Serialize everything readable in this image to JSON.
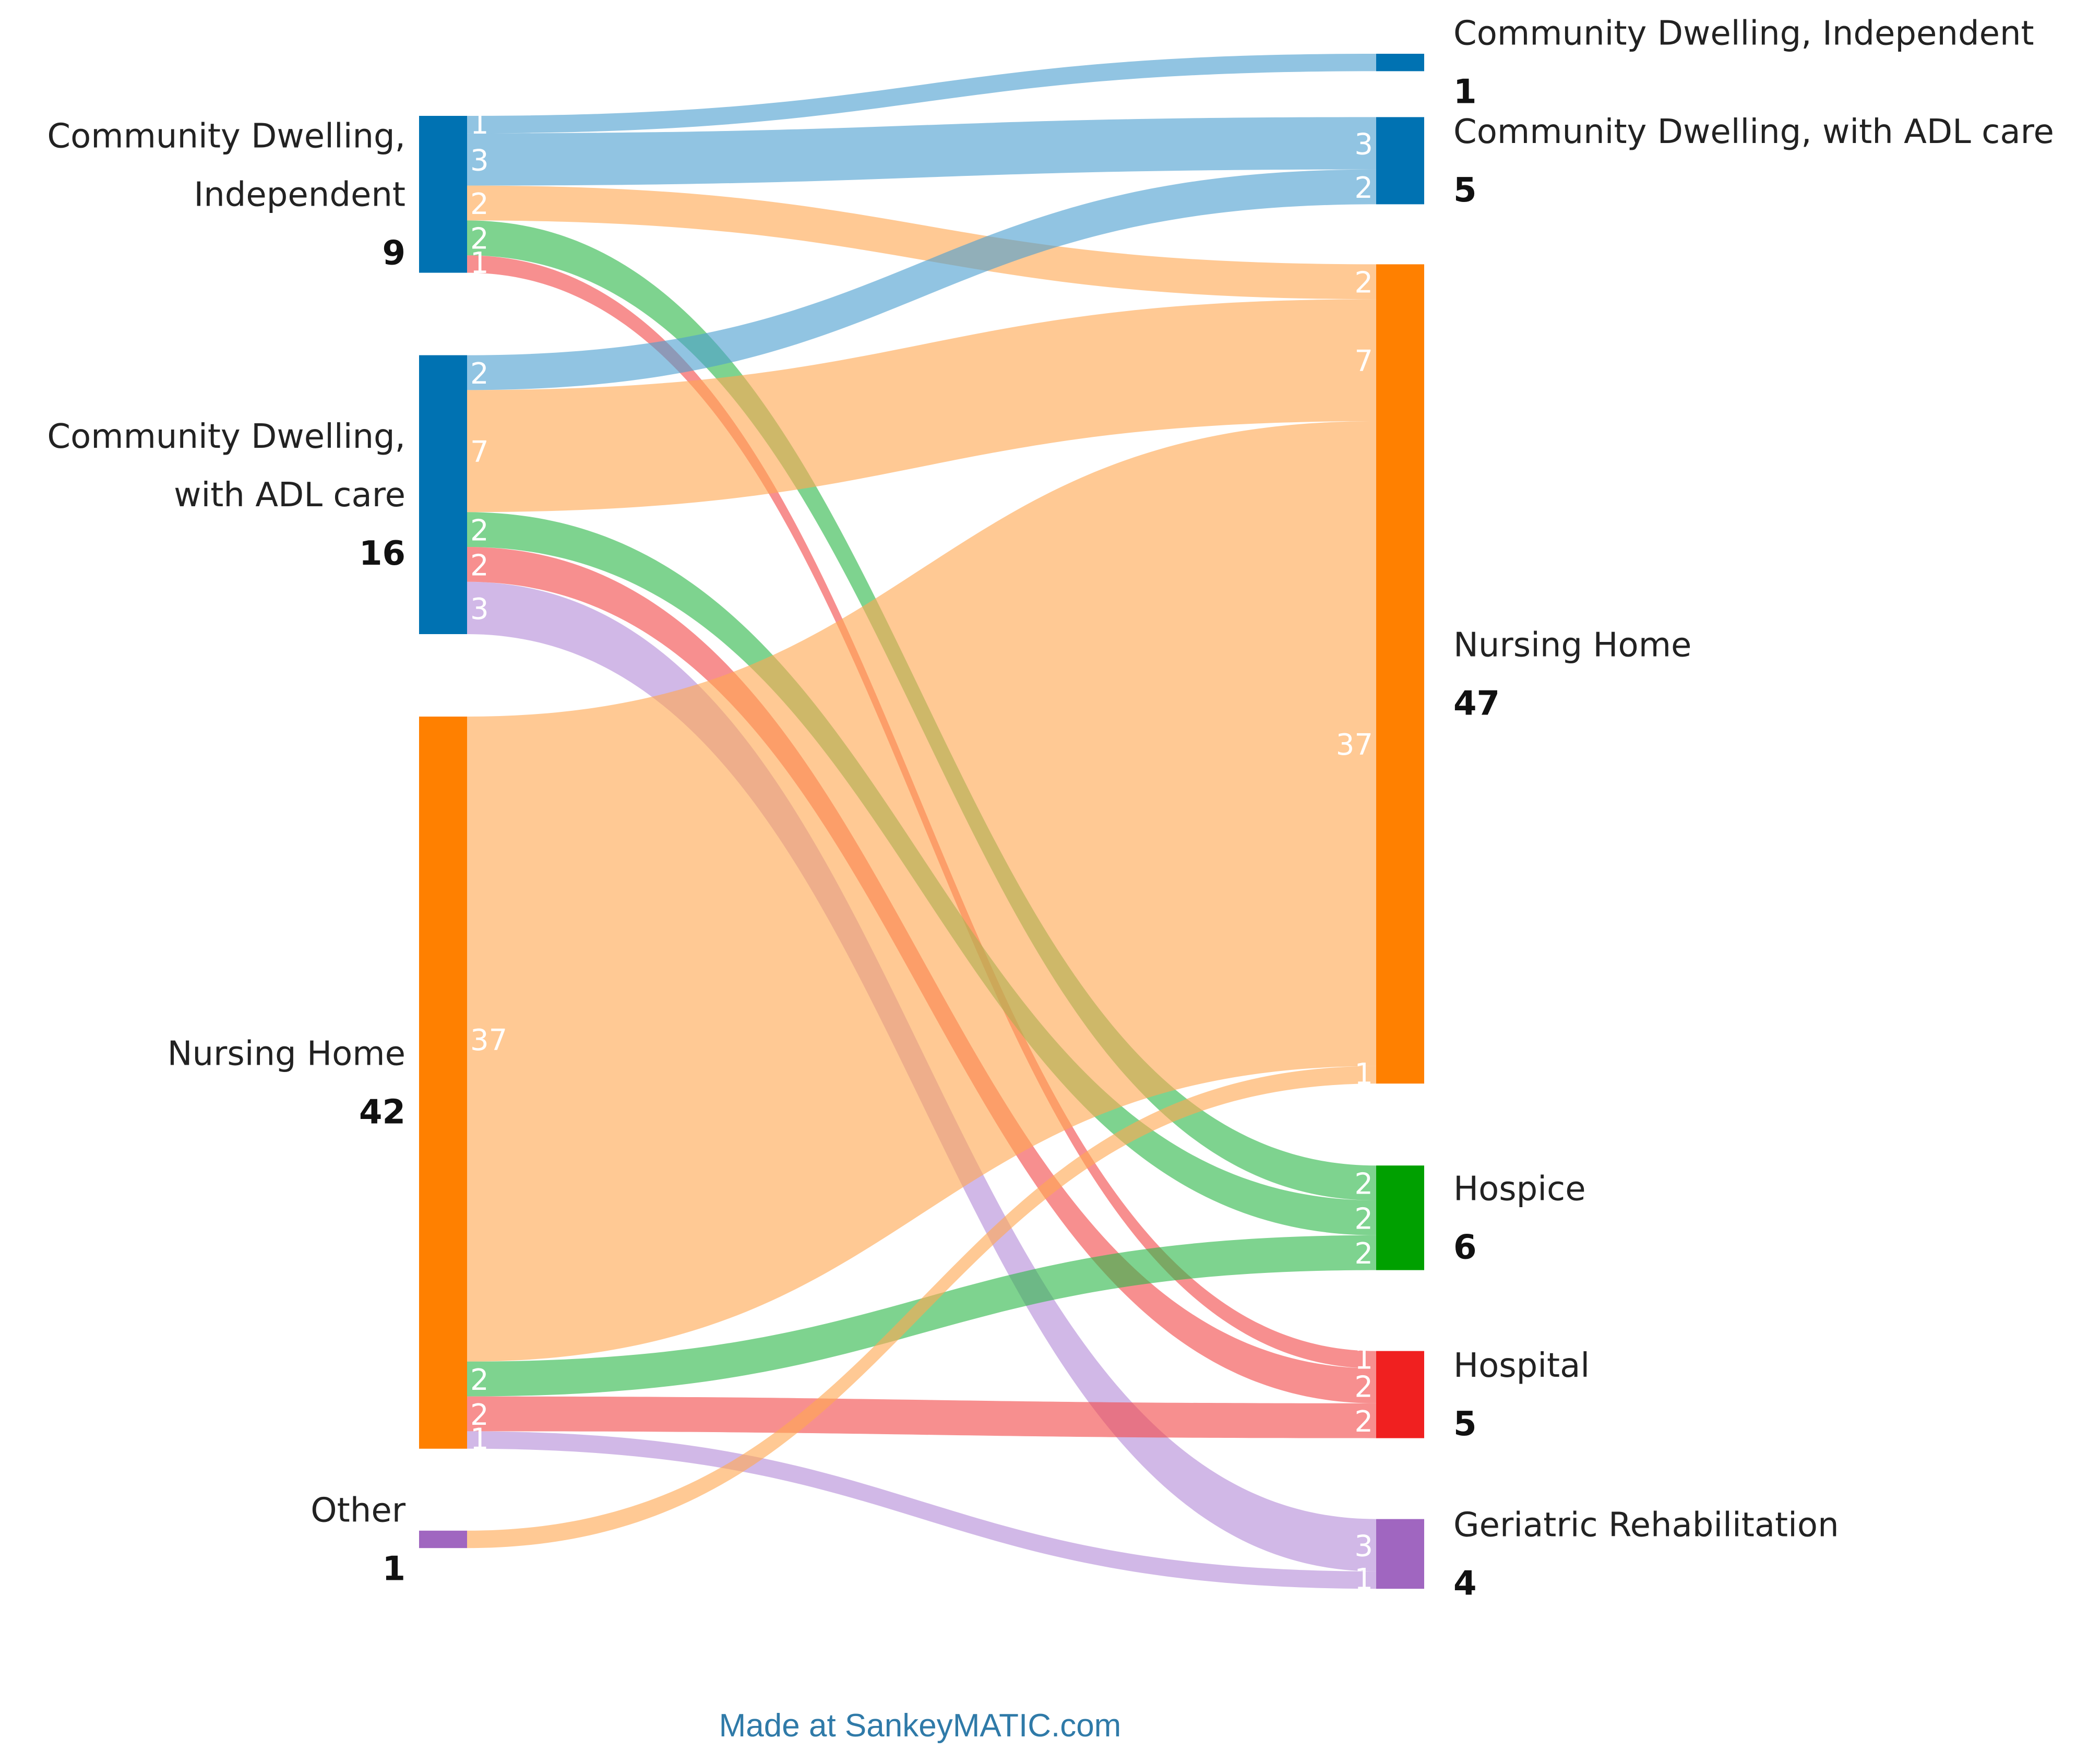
{
  "chart_data": {
    "type": "sankey",
    "title": "",
    "sources": [
      {
        "id": "src_cdi",
        "label_lines": [
          "Community Dwelling,",
          "Independent"
        ],
        "value": "9",
        "color": "#0072b2"
      },
      {
        "id": "src_cda",
        "label_lines": [
          "Community Dwelling,",
          "with ADL care"
        ],
        "value": "16",
        "color": "#0072b2"
      },
      {
        "id": "src_nh",
        "label_lines": [
          "Nursing Home"
        ],
        "value": "42",
        "color": "#ff8000"
      },
      {
        "id": "src_other",
        "label_lines": [
          "Other"
        ],
        "value": "1",
        "color": "#a066c0"
      }
    ],
    "targets": [
      {
        "id": "tgt_cdi",
        "label_lines": [
          "Community Dwelling, Independent"
        ],
        "value": "1",
        "color": "#0072b2"
      },
      {
        "id": "tgt_cda",
        "label_lines": [
          "Community Dwelling, with ADL care"
        ],
        "value": "5",
        "color": "#0072b2"
      },
      {
        "id": "tgt_nh",
        "label_lines": [
          "Nursing Home"
        ],
        "value": "47",
        "color": "#ff8000"
      },
      {
        "id": "tgt_hospice",
        "label_lines": [
          "Hospice"
        ],
        "value": "6",
        "color": "#00a000"
      },
      {
        "id": "tgt_hospital",
        "label_lines": [
          "Hospital"
        ],
        "value": "5",
        "color": "#f02020"
      },
      {
        "id": "tgt_geri",
        "label_lines": [
          "Geriatric Rehabilitation"
        ],
        "value": "4",
        "color": "#a066c0"
      }
    ],
    "flows": [
      {
        "from": "src_cdi",
        "to": "tgt_cdi",
        "value": 1,
        "label": "1",
        "color": "#4ea0d0",
        "show_src": true,
        "show_tgt": false
      },
      {
        "from": "src_cdi",
        "to": "tgt_cda",
        "value": 3,
        "label": "3",
        "color": "#4ea0d0",
        "show_src": true,
        "show_tgt": true
      },
      {
        "from": "src_cdi",
        "to": "tgt_nh",
        "value": 2,
        "label": "2",
        "color": "#ffa852",
        "show_src": true,
        "show_tgt": true
      },
      {
        "from": "src_cdi",
        "to": "tgt_hospice",
        "value": 2,
        "label": "2",
        "color": "#2eb84a",
        "show_src": true,
        "show_tgt": true
      },
      {
        "from": "src_cdi",
        "to": "tgt_hospital",
        "value": 1,
        "label": "1",
        "color": "#f24a4a",
        "show_src": true,
        "show_tgt": true
      },
      {
        "from": "src_cda",
        "to": "tgt_cda",
        "value": 2,
        "label": "2",
        "color": "#4ea0d0",
        "show_src": true,
        "show_tgt": true
      },
      {
        "from": "src_cda",
        "to": "tgt_nh",
        "value": 7,
        "label": "7",
        "color": "#ffa852",
        "show_src": true,
        "show_tgt": true
      },
      {
        "from": "src_cda",
        "to": "tgt_hospice",
        "value": 2,
        "label": "2",
        "color": "#2eb84a",
        "show_src": true,
        "show_tgt": true
      },
      {
        "from": "src_cda",
        "to": "tgt_hospital",
        "value": 2,
        "label": "2",
        "color": "#f24a4a",
        "show_src": true,
        "show_tgt": true
      },
      {
        "from": "src_cda",
        "to": "tgt_geri",
        "value": 3,
        "label": "3",
        "color": "#b48cd8",
        "show_src": true,
        "show_tgt": true
      },
      {
        "from": "src_nh",
        "to": "tgt_nh",
        "value": 37,
        "label": "37",
        "color": "#ffa852",
        "show_src": true,
        "show_tgt": true
      },
      {
        "from": "src_nh",
        "to": "tgt_hospice",
        "value": 2,
        "label": "2",
        "color": "#2eb84a",
        "show_src": true,
        "show_tgt": true
      },
      {
        "from": "src_nh",
        "to": "tgt_hospital",
        "value": 2,
        "label": "2",
        "color": "#f24a4a",
        "show_src": true,
        "show_tgt": true
      },
      {
        "from": "src_nh",
        "to": "tgt_geri",
        "value": 1,
        "label": "1",
        "color": "#b48cd8",
        "show_src": true,
        "show_tgt": true
      },
      {
        "from": "src_other",
        "to": "tgt_nh",
        "value": 1,
        "label": "1",
        "color": "#ffa852",
        "show_src": false,
        "show_tgt": true
      }
    ]
  },
  "credit": "Made at SankeyMATIC.com"
}
